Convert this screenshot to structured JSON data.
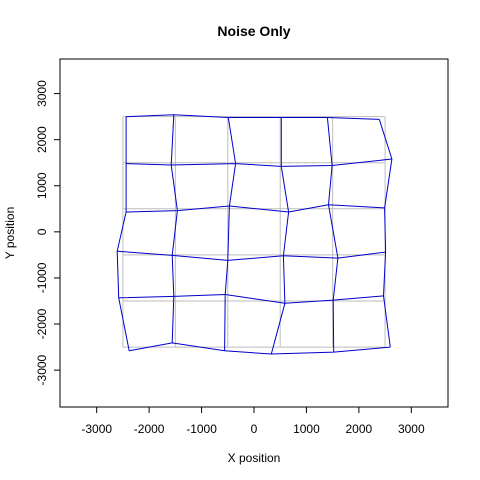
{
  "chart_data": {
    "type": "line",
    "title": "Noise Only",
    "xlabel": "X position",
    "ylabel": "Y position",
    "xlim": [
      -3700,
      3700
    ],
    "ylim": [
      -3800,
      3750
    ],
    "xticks": [
      -3000,
      -2000,
      -1000,
      0,
      1000,
      2000,
      3000
    ],
    "yticks": [
      -3000,
      -2000,
      -1000,
      0,
      1000,
      2000,
      3000
    ],
    "grid": false,
    "reference_grid": {
      "color": "#bebebe",
      "x": [
        -2500,
        -1500,
        -500,
        500,
        1500,
        2500
      ],
      "y": [
        -2500,
        -1500,
        -500,
        500,
        1500,
        2500
      ]
    },
    "noisy_grid": {
      "color": "#0000cd",
      "rows": [
        [
          [
            -2380,
            -2580
          ],
          [
            -1560,
            -2410
          ],
          [
            -560,
            -2580
          ],
          [
            330,
            -2650
          ],
          [
            1520,
            -2610
          ],
          [
            2600,
            -2500
          ]
        ],
        [
          [
            -2580,
            -1430
          ],
          [
            -1530,
            -1400
          ],
          [
            -550,
            -1360
          ],
          [
            590,
            -1550
          ],
          [
            1510,
            -1480
          ],
          [
            2470,
            -1390
          ]
        ],
        [
          [
            -2610,
            -420
          ],
          [
            -1560,
            -510
          ],
          [
            -500,
            -620
          ],
          [
            560,
            -520
          ],
          [
            1600,
            -570
          ],
          [
            2510,
            -440
          ]
        ],
        [
          [
            -2440,
            430
          ],
          [
            -1460,
            460
          ],
          [
            -470,
            560
          ],
          [
            660,
            430
          ],
          [
            1420,
            590
          ],
          [
            2490,
            520
          ]
        ],
        [
          [
            -2440,
            1480
          ],
          [
            -1580,
            1450
          ],
          [
            -350,
            1480
          ],
          [
            520,
            1420
          ],
          [
            1490,
            1440
          ],
          [
            2630,
            1580
          ]
        ],
        [
          [
            -2440,
            2500
          ],
          [
            -1530,
            2540
          ],
          [
            -490,
            2480
          ],
          [
            520,
            2480
          ],
          [
            1400,
            2480
          ],
          [
            2390,
            2440
          ]
        ]
      ]
    }
  }
}
